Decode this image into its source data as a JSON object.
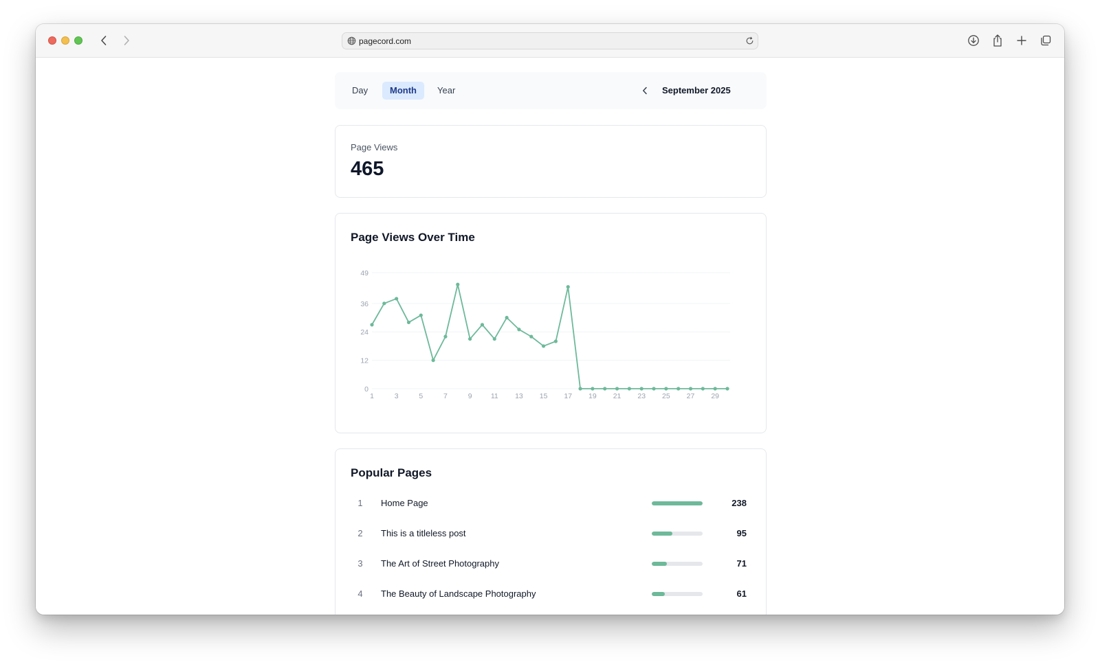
{
  "browser": {
    "url": "pagecord.com"
  },
  "range": {
    "tabs": [
      {
        "label": "Day"
      },
      {
        "label": "Month"
      },
      {
        "label": "Year"
      }
    ],
    "selected": "Month",
    "period": "September 2025"
  },
  "stats": {
    "page_views_label": "Page Views",
    "page_views_value": "465"
  },
  "chart_data": {
    "type": "line",
    "title": "Page Views Over Time",
    "xlabel": "",
    "ylabel": "",
    "x": [
      1,
      2,
      3,
      4,
      5,
      6,
      7,
      8,
      9,
      10,
      11,
      12,
      13,
      14,
      15,
      16,
      17,
      18,
      19,
      20,
      21,
      22,
      23,
      24,
      25,
      26,
      27,
      28,
      29,
      30
    ],
    "x_tick_labels": [
      "1",
      "3",
      "5",
      "7",
      "9",
      "11",
      "13",
      "15",
      "17",
      "19",
      "21",
      "23",
      "25",
      "27",
      "29"
    ],
    "y_tick_labels": [
      "0",
      "12",
      "24",
      "36",
      "49"
    ],
    "ylim": [
      0,
      49
    ],
    "grid": true,
    "series": [
      {
        "values": [
          27,
          36,
          38,
          28,
          31,
          12,
          22,
          44,
          21,
          27,
          21,
          30,
          25,
          22,
          18,
          20,
          43,
          0,
          0,
          0,
          0,
          0,
          0,
          0,
          0,
          0,
          0,
          0,
          0,
          0
        ]
      }
    ],
    "colors": {
      "line": "#6db99a",
      "grid": "#f1f3f5",
      "tick": "#9ca3af"
    }
  },
  "popular": {
    "title": "Popular Pages",
    "max": 238,
    "rows": [
      {
        "rank": "1",
        "name": "Home Page",
        "count": 238
      },
      {
        "rank": "2",
        "name": "This is a titleless post",
        "count": 95
      },
      {
        "rank": "3",
        "name": "The Art of Street Photography",
        "count": 71
      },
      {
        "rank": "4",
        "name": "The Beauty of Landscape Photography",
        "count": 61
      }
    ]
  }
}
